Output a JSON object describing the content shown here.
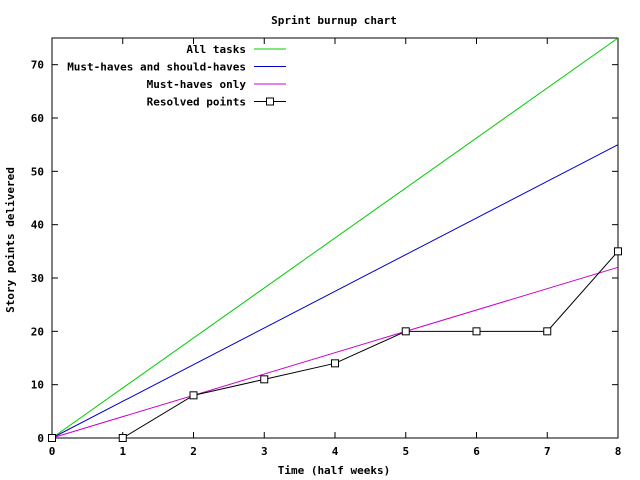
{
  "chart_data": {
    "type": "line",
    "title": "Sprint burnup chart",
    "xlabel": "Time (half weeks)",
    "ylabel": "Story points delivered",
    "xlim": [
      0,
      8
    ],
    "ylim": [
      0,
      75
    ],
    "xticks": [
      0,
      1,
      2,
      3,
      4,
      5,
      6,
      7,
      8
    ],
    "yticks": [
      0,
      10,
      20,
      30,
      40,
      50,
      60,
      70
    ],
    "grid": false,
    "legend_position": "top-left",
    "series": [
      {
        "name": "All tasks",
        "color": "#00cc00",
        "marker": "none",
        "x": [
          0,
          8
        ],
        "y": [
          0,
          75
        ]
      },
      {
        "name": "Must-haves and should-haves",
        "color": "#0000cc",
        "marker": "none",
        "x": [
          0,
          8
        ],
        "y": [
          0,
          55
        ]
      },
      {
        "name": "Must-haves only",
        "color": "#cc00cc",
        "marker": "none",
        "x": [
          0,
          8
        ],
        "y": [
          0,
          32
        ]
      },
      {
        "name": "Resolved points",
        "color": "#000000",
        "marker": "square",
        "x": [
          0,
          1,
          2,
          3,
          4,
          5,
          6,
          7,
          8
        ],
        "y": [
          0,
          0,
          8,
          11,
          14,
          20,
          20,
          20,
          35
        ]
      }
    ]
  }
}
